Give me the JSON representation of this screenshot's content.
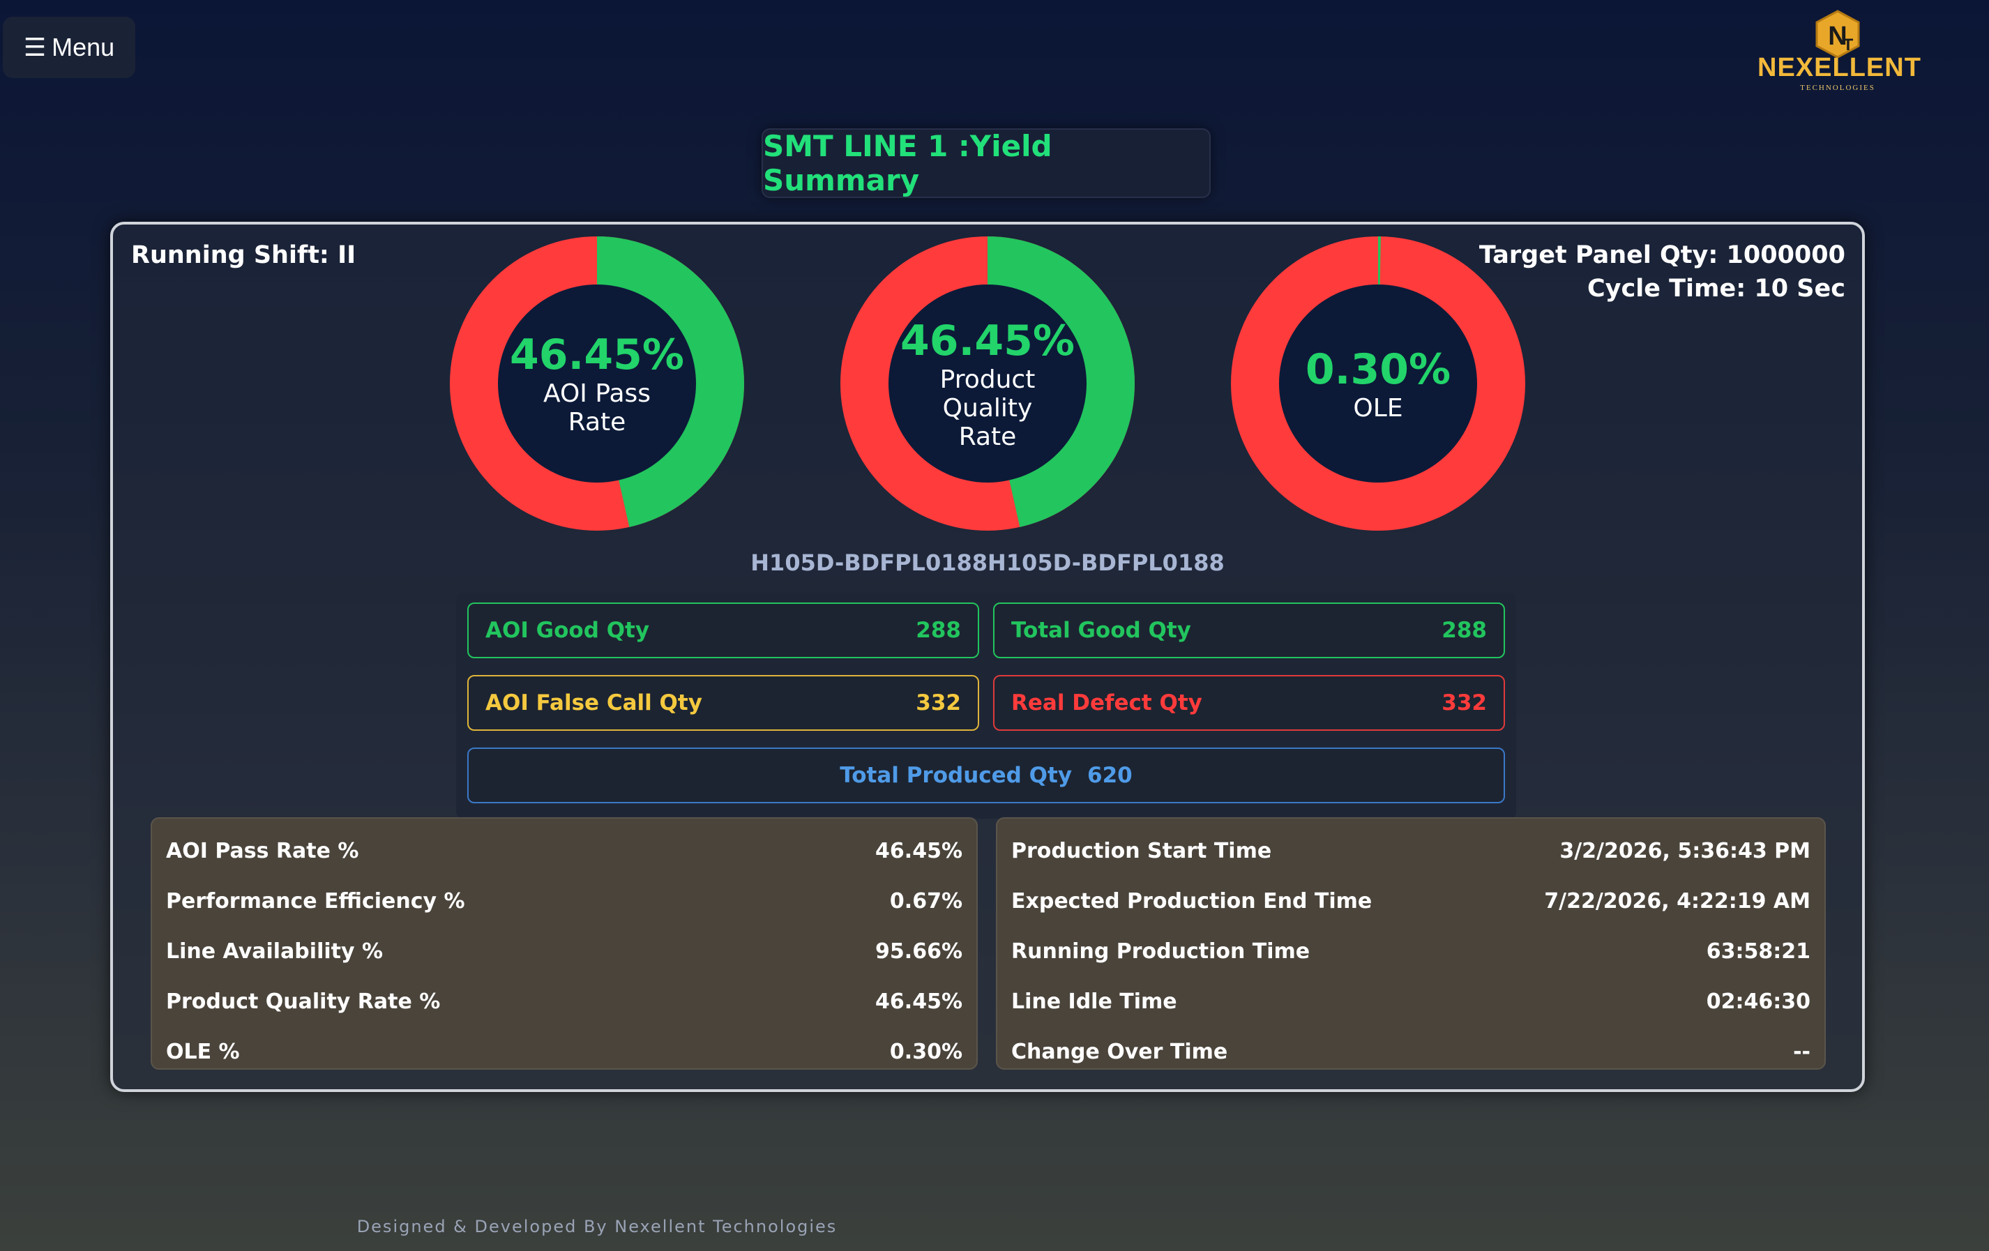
{
  "menu": {
    "icon": "☰",
    "label": "Menu"
  },
  "logo": {
    "name": "NEXELLENT",
    "sub": "TECHNOLOGIES"
  },
  "title": "SMT LINE 1 :Yield Summary",
  "shift": "Running Shift: II",
  "target_qty": "Target Panel Qty: 1000000",
  "cycle_time": "Cycle Time: 10 Sec",
  "colors": {
    "good": "#22c55e",
    "bad": "#ff3b3b",
    "warn": "#facc15",
    "info": "#4f9be8"
  },
  "gauges": [
    {
      "value_text": "46.45%",
      "label": "AOI Pass Rate",
      "percent": 46.45
    },
    {
      "value_text": "46.45%",
      "label": "Product Quality Rate",
      "percent": 46.45
    },
    {
      "value_text": "0.30%",
      "label": "OLE",
      "percent": 0.3
    }
  ],
  "model": "H105D-BDFPL0188H105D-BDFPL0188",
  "quantities": {
    "aoi_good": {
      "label": "AOI Good Qty",
      "value": "288"
    },
    "total_good": {
      "label": "Total Good Qty",
      "value": "288"
    },
    "aoi_false": {
      "label": "AOI False Call Qty",
      "value": "332"
    },
    "real_defect": {
      "label": "Real Defect Qty",
      "value": "332"
    },
    "total_produced": {
      "label": "Total Produced Qty",
      "value": "620"
    }
  },
  "stats_left": [
    {
      "label": "AOI Pass Rate %",
      "value": "46.45%"
    },
    {
      "label": "Performance Efficiency %",
      "value": "0.67%"
    },
    {
      "label": "Line Availability %",
      "value": "95.66%"
    },
    {
      "label": "Product Quality Rate %",
      "value": "46.45%"
    },
    {
      "label": "OLE %",
      "value": "0.30%"
    }
  ],
  "stats_right": [
    {
      "label": "Production Start Time",
      "value": "3/2/2026, 5:36:43 PM"
    },
    {
      "label": "Expected Production End Time",
      "value": "7/22/2026, 4:22:19 AM"
    },
    {
      "label": "Running Production Time",
      "value": "63:58:21"
    },
    {
      "label": "Line Idle Time",
      "value": "02:46:30"
    },
    {
      "label": "Change Over Time",
      "value": "--"
    }
  ],
  "footer": "Designed & Developed By Nexellent Technologies"
}
